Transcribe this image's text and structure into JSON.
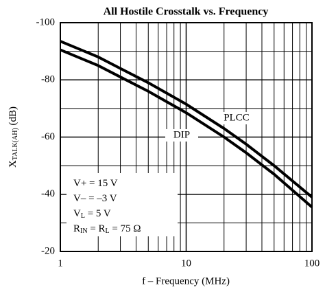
{
  "chart_data": {
    "type": "line",
    "title": "All Hostile Crosstalk vs. Frequency",
    "x_label": "f – Frequency (MHz)",
    "y_label": [
      "X",
      "TALK(AH)",
      " (dB)"
    ],
    "x_log": true,
    "xlim": [
      1,
      100
    ],
    "xticks": [
      1,
      10,
      100
    ],
    "xminor": [
      2,
      3,
      4,
      5,
      6,
      7,
      8,
      9,
      20,
      30,
      40,
      50,
      60,
      70,
      80,
      90
    ],
    "ylim": [
      -20,
      -100
    ],
    "yticks": [
      -100,
      -80,
      -60,
      -40,
      -20
    ],
    "yminor": [
      -90,
      -70,
      -50,
      -30
    ],
    "grid": true,
    "series": [
      {
        "name": "PLCC",
        "color": "#000000",
        "x": [
          1,
          2,
          3,
          5,
          10,
          20,
          30,
          50,
          100
        ],
        "values": [
          -93.5,
          -88,
          -84,
          -79,
          -71.5,
          -63,
          -57.5,
          -50,
          -39
        ]
      },
      {
        "name": "DIP",
        "color": "#000000",
        "x": [
          1,
          2,
          3,
          5,
          10,
          20,
          30,
          50,
          100
        ],
        "values": [
          -90.5,
          -85,
          -81,
          -76,
          -68.5,
          -60,
          -54.5,
          -47,
          -35.5
        ]
      }
    ],
    "conditions": [
      [
        "V+ = 15 V"
      ],
      [
        "V– = –3 V"
      ],
      [
        "V",
        "L",
        " = 5 V"
      ],
      [
        "R",
        "IN",
        " = R",
        "L",
        " = 75 Ω"
      ]
    ]
  }
}
